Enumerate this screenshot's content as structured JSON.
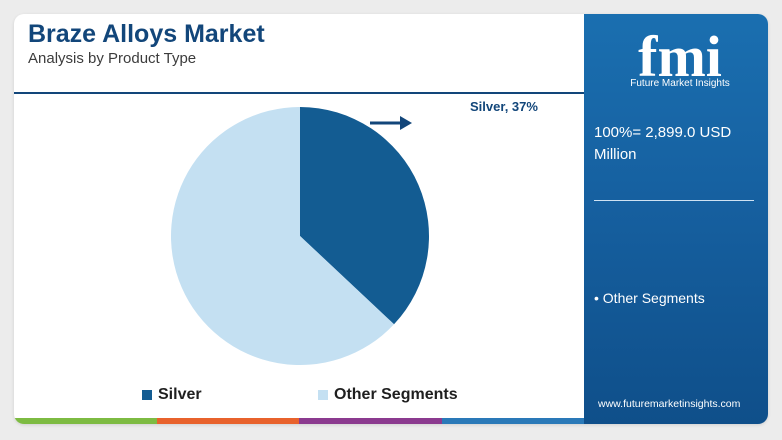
{
  "header": {
    "title": "Braze Alloys Market",
    "subtitle": "Analysis by Product Type"
  },
  "chart_data": {
    "type": "pie",
    "categories": [
      "Silver",
      "Other Segments"
    ],
    "values": [
      37,
      63
    ],
    "unit": "%",
    "colors": [
      "#135c92",
      "#c4e0f2"
    ],
    "annotation": "Silver, 37%",
    "legend": [
      "Silver",
      "Other Segments"
    ],
    "legend_position": "bottom"
  },
  "sidebar": {
    "logo_text": "fmi",
    "logo_subtitle": "Future Market Insights",
    "total": "100%= 2,899.0 USD Million",
    "legend_item": "• Other Segments",
    "website": "www.futuremarketinsights.com"
  },
  "colors": {
    "brand_dark": "#12467a",
    "panel_blue": "#1a6fb0",
    "bar": [
      "#7dbb42",
      "#e8622c",
      "#8b3a8f",
      "#2a79b8"
    ]
  }
}
